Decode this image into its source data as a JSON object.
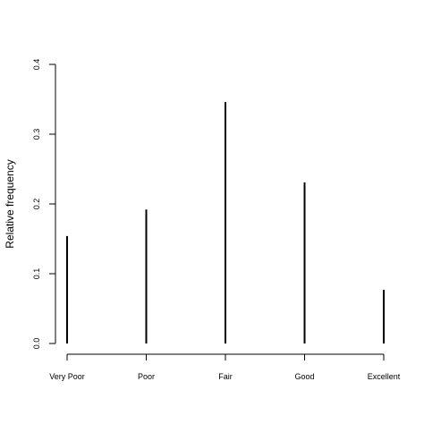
{
  "chart_data": {
    "type": "bar",
    "title": "",
    "xlabel": "",
    "ylabel": "Relative frequency",
    "categories": [
      "Very Poor",
      "Poor",
      "Fair",
      "Good",
      "Excellent"
    ],
    "values": [
      0.154,
      0.192,
      0.346,
      0.231,
      0.077
    ],
    "ylim": [
      0,
      0.4
    ],
    "yticks": [
      "0.0",
      "0.1",
      "0.2",
      "0.3",
      "0.4"
    ],
    "grid": false,
    "legend": "none",
    "bar_color": "#000000"
  }
}
